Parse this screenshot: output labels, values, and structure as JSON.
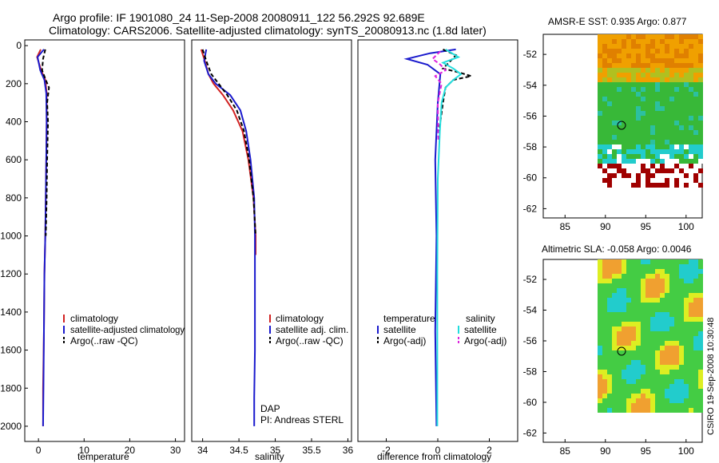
{
  "figure": {
    "title_line1": "Argo profile: IF 1901080_24 11-Sep-2008 20080911_122 56.292S 92.689E",
    "title_line2": "Climatology: CARS2006. Satellite-adjusted climatology: synTS_20080913.nc (1.8d later)",
    "side_stamp": "CSIRO 19-Sep-2008 10:30:48"
  },
  "chart_data": [
    {
      "id": "temperature",
      "type": "line",
      "xlabel": "temperature",
      "ylabel": "",
      "xlim": [
        -3,
        32
      ],
      "ylim": [
        2080,
        -30
      ],
      "x_ticks": [
        "0",
        "10",
        "20",
        "30"
      ],
      "y_ticks": [
        "0",
        "200",
        "400",
        "600",
        "800",
        "1000",
        "1200",
        "1400",
        "1600",
        "1800",
        "2000"
      ],
      "legend": [
        "climatology",
        "satellite-adjusted climatology",
        "Argo(..raw -QC)"
      ],
      "colors": [
        "#d22222",
        "#1a1acd",
        "#000000"
      ],
      "series": [
        {
          "name": "climatology",
          "color": "#d22222",
          "dash": "solid",
          "x": [
            0.5,
            -0.3,
            0.6,
            1.5,
            1.8,
            1.8,
            1.7,
            1.6,
            1.5,
            1.3,
            1.2,
            1.0,
            1.0
          ],
          "y": [
            20,
            60,
            130,
            180,
            250,
            400,
            600,
            800,
            1000,
            1200,
            1500,
            1800,
            2000
          ]
        },
        {
          "name": "satellite-adjusted climatology",
          "color": "#1a1acd",
          "dash": "solid",
          "x": [
            1.2,
            -0.2,
            0.4,
            1.3,
            1.7,
            1.8,
            1.7,
            1.6,
            1.5,
            1.3,
            1.2,
            1.1,
            1.0
          ],
          "y": [
            20,
            60,
            130,
            180,
            250,
            400,
            600,
            800,
            1000,
            1200,
            1500,
            1800,
            2000
          ]
        },
        {
          "name": "Argo(..raw -QC)",
          "color": "#000000",
          "dash": "dashed",
          "x": [
            1.5,
            1.0,
            0.8,
            1.6,
            2.3,
            1.9,
            2.1,
            1.9,
            1.8,
            1.6
          ],
          "y": [
            20,
            70,
            130,
            180,
            220,
            300,
            400,
            600,
            800,
            1000
          ]
        }
      ],
      "annotations": []
    },
    {
      "id": "salinity",
      "type": "line",
      "xlabel": "salinity",
      "ylabel": "",
      "xlim": [
        33.85,
        36.05
      ],
      "ylim": [
        2080,
        -30
      ],
      "x_ticks": [
        "34",
        "34.5",
        "35",
        "35.5",
        "36"
      ],
      "legend": [
        "climatology",
        "satellite adj. clim.",
        "Argo(..raw -QC)"
      ],
      "colors": [
        "#d22222",
        "#1a1acd",
        "#000000"
      ],
      "series": [
        {
          "name": "climatology",
          "color": "#d22222",
          "dash": "solid",
          "x": [
            33.98,
            34.03,
            34.08,
            34.15,
            34.28,
            34.42,
            34.55,
            34.63,
            34.7,
            34.73,
            34.73
          ],
          "y": [
            20,
            80,
            150,
            200,
            260,
            340,
            450,
            600,
            800,
            1000,
            1100
          ]
        },
        {
          "name": "satellite adj. clim.",
          "color": "#1a1acd",
          "dash": "solid",
          "x": [
            34.05,
            34.02,
            34.08,
            34.18,
            34.38,
            34.52,
            34.6,
            34.66,
            34.71,
            34.72,
            34.72,
            34.72,
            34.71,
            34.71
          ],
          "y": [
            20,
            80,
            150,
            200,
            260,
            340,
            450,
            600,
            800,
            1000,
            1300,
            1600,
            1850,
            2000
          ]
        },
        {
          "name": "Argo(..raw -QC)",
          "color": "#000000",
          "dash": "dashed",
          "x": [
            34.0,
            34.05,
            34.12,
            34.22,
            34.34,
            34.47,
            34.57,
            34.64,
            34.7,
            34.73
          ],
          "y": [
            20,
            80,
            150,
            200,
            260,
            340,
            450,
            600,
            800,
            1000
          ]
        }
      ],
      "annotations": [
        "DAP",
        "PI: Andreas STERL"
      ]
    },
    {
      "id": "difference",
      "type": "line",
      "xlabel": "difference from climatology",
      "ylabel": "",
      "xlim": [
        -3.1,
        3.1
      ],
      "ylim": [
        2080,
        -30
      ],
      "x_ticks": [
        "-2",
        "0",
        "2"
      ],
      "legend_left_header": "temperature",
      "legend_right_header": "salinity",
      "legend_left": [
        "satellite",
        "Argo(-adj)"
      ],
      "legend_right": [
        "satellite",
        "Argo(-adj)"
      ],
      "colors": [
        "#1a1acd",
        "#000000",
        "#22dddd",
        "#dd22dd"
      ],
      "series": [
        {
          "name": "temperature satellite",
          "color": "#1a1acd",
          "dash": "solid",
          "x": [
            0.7,
            -0.3,
            -1.2,
            -0.4,
            0.1,
            0.0,
            -0.1,
            -0.05,
            -0.1,
            -0.05
          ],
          "y": [
            20,
            40,
            70,
            100,
            150,
            300,
            600,
            1000,
            1500,
            2000
          ]
        },
        {
          "name": "temperature Argo(-adj)",
          "color": "#000000",
          "dash": "dashed",
          "x": [
            0.2,
            0.7,
            0.5,
            0.2,
            0.8,
            1.3,
            0.6,
            0.3,
            0.2,
            0.05
          ],
          "y": [
            20,
            50,
            80,
            120,
            140,
            160,
            180,
            220,
            300,
            450
          ]
        },
        {
          "name": "salinity satellite",
          "color": "#22dddd",
          "dash": "solid",
          "x": [
            0.3,
            0.8,
            0.2,
            0.6,
            0.9,
            0.6,
            0.3,
            0.15,
            0.08,
            0.0,
            -0.02,
            -0.02
          ],
          "y": [
            20,
            60,
            90,
            120,
            150,
            180,
            220,
            300,
            450,
            700,
            1200,
            2000
          ]
        },
        {
          "name": "salinity Argo(-adj)",
          "color": "#dd22dd",
          "dash": "dashed",
          "x": [
            0.1,
            -0.2,
            0.1,
            0.3,
            -0.1,
            0.15,
            0.0,
            0.02
          ],
          "y": [
            30,
            70,
            100,
            130,
            160,
            200,
            300,
            500
          ]
        }
      ],
      "annotations": []
    }
  ],
  "maps": [
    {
      "id": "amsre-sst",
      "title": "AMSR-E SST: 0.935 Argo: 0.877",
      "x_ticks": [
        "85",
        "90",
        "95",
        "100"
      ],
      "y_ticks": [
        "-52",
        "-54",
        "-56",
        "-58",
        "-60",
        "-62"
      ],
      "marker": {
        "lon": 92.7,
        "lat": -56.3
      },
      "colors": [
        "#f0a000",
        "#e08000",
        "#38b838",
        "#22cccc",
        "#a00000"
      ]
    },
    {
      "id": "altimetric-sla",
      "title": "Altimetric SLA: -0.058 Argo: 0.0046",
      "x_ticks": [
        "85",
        "90",
        "95",
        "100"
      ],
      "y_ticks": [
        "-52",
        "-54",
        "-56",
        "-58",
        "-60",
        "-62"
      ],
      "marker": {
        "lon": 92.7,
        "lat": -56.3
      },
      "colors": [
        "#44cc44",
        "#ddee22",
        "#22cccc",
        "#f0a030"
      ]
    }
  ]
}
